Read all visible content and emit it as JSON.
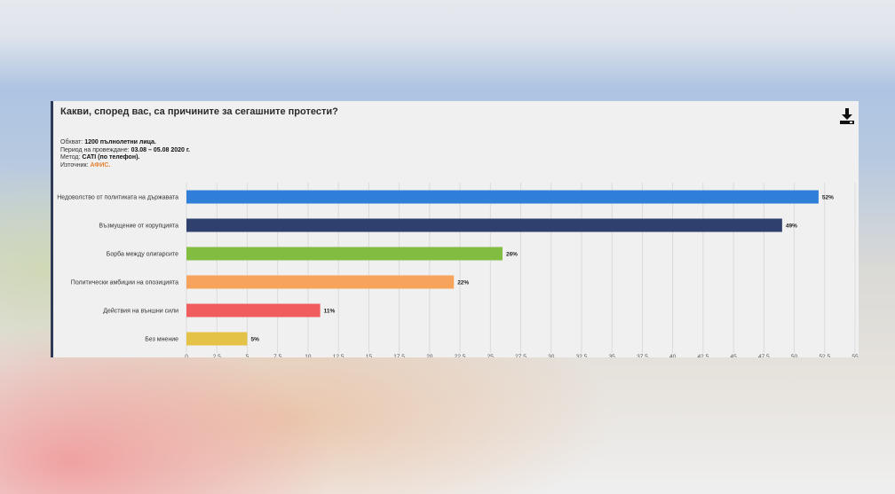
{
  "chart_data": {
    "type": "bar",
    "orientation": "horizontal",
    "title": "Какви, според вас, са причините за сегашните протести?",
    "categories": [
      "Недоволство от политиката на държавата",
      "Възмущение от корупцията",
      "Борба между олигарсите",
      "Политически амбиции на опозицията",
      "Действия на външни сили",
      "Без мнение"
    ],
    "values": [
      52,
      49,
      26,
      22,
      11,
      5
    ],
    "value_labels": [
      "52%",
      "49%",
      "26%",
      "22%",
      "11%",
      "5%"
    ],
    "colors": [
      "#2f7ed8",
      "#2f3f6e",
      "#82bc41",
      "#f7a35c",
      "#f15c5e",
      "#e4c147"
    ],
    "xlim": [
      0,
      55
    ],
    "x_ticks": [
      "0",
      "2.5",
      "5",
      "7.5",
      "10",
      "12.5",
      "15",
      "17.5",
      "20",
      "22.5",
      "25",
      "27.5",
      "30",
      "32.5",
      "35",
      "37.5",
      "40",
      "42.5",
      "45",
      "47.5",
      "50",
      "52.5",
      "55"
    ],
    "grid": true,
    "legend": "none"
  },
  "meta": {
    "coverage_label": "Обхват:",
    "coverage_value": "1200 пълнолетни лица.",
    "period_label": "Период на провеждане:",
    "period_value": "03.08 – 05.08 2020 г.",
    "method_label": "Метод:",
    "method_value": "CATI (по телефон).",
    "source_label": "Източник:",
    "source_value": "АФИС."
  },
  "toolbar": {
    "download_icon": "download-icon"
  }
}
